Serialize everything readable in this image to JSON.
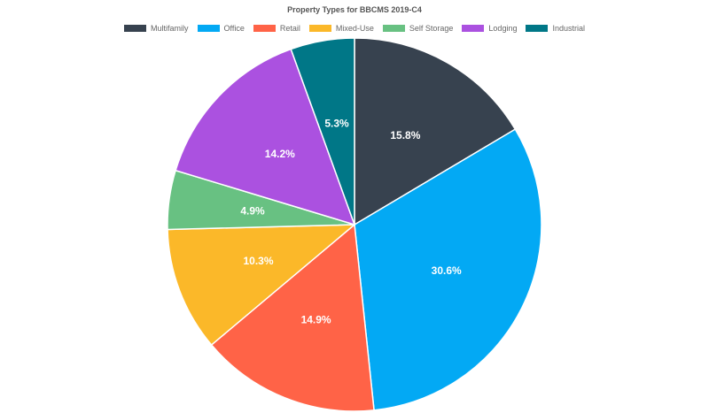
{
  "chart_data": {
    "type": "pie",
    "title": "Property Types for BBCMS 2019-C4",
    "legend_position": "top",
    "start_angle_deg": 0,
    "direction": "clockwise",
    "slices": [
      {
        "label": "Multifamily",
        "value": 15.8,
        "value_label": "15.8%",
        "color": "#37424f"
      },
      {
        "label": "Office",
        "value": 30.6,
        "value_label": "30.6%",
        "color": "#03a9f4"
      },
      {
        "label": "Retail",
        "value": 14.9,
        "value_label": "14.9%",
        "color": "#ff6347"
      },
      {
        "label": "Mixed-Use",
        "value": 10.3,
        "value_label": "10.3%",
        "color": "#fbb829"
      },
      {
        "label": "Self Storage",
        "value": 4.9,
        "value_label": "4.9%",
        "color": "#68c182"
      },
      {
        "label": "Lodging",
        "value": 14.2,
        "value_label": "14.2%",
        "color": "#ab51e0"
      },
      {
        "label": "Industrial",
        "value": 5.3,
        "value_label": "5.3%",
        "color": "#007787"
      }
    ]
  }
}
